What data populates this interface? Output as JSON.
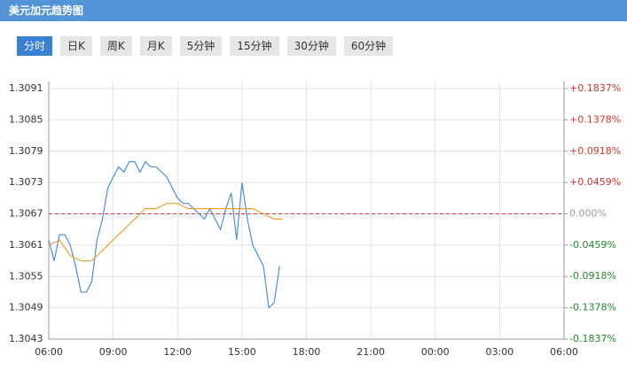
{
  "header": {
    "title": "美元加元趋势图"
  },
  "tabs": [
    "分时",
    "日K",
    "周K",
    "月K",
    "5分钟",
    "15分钟",
    "30分钟",
    "60分钟"
  ],
  "active_tab": 0,
  "chart_data": {
    "type": "line",
    "xlim": [
      0,
      24
    ],
    "xticks": [
      {
        "value": 0,
        "label": "06:00"
      },
      {
        "value": 3,
        "label": "09:00"
      },
      {
        "value": 6,
        "label": "12:00"
      },
      {
        "value": 9,
        "label": "15:00"
      },
      {
        "value": 12,
        "label": "18:00"
      },
      {
        "value": 15,
        "label": "21:00"
      },
      {
        "value": 18,
        "label": "00:00"
      },
      {
        "value": 21,
        "label": "03:00"
      },
      {
        "value": 24,
        "label": "06:00"
      }
    ],
    "ylim": [
      1.3043,
      1.3091
    ],
    "yticks": [
      1.3091,
      1.3085,
      1.3079,
      1.3073,
      1.3067,
      1.3061,
      1.3055,
      1.3049,
      1.3043
    ],
    "y2lim": [
      -0.1837,
      0.1837
    ],
    "y2ticks": [
      {
        "value": 0.1837,
        "label": "+0.1837%"
      },
      {
        "value": 0.1378,
        "label": "+0.1378%"
      },
      {
        "value": 0.0918,
        "label": "+0.0918%"
      },
      {
        "value": 0.0459,
        "label": "+0.0459%"
      },
      {
        "value": 0,
        "label": "0.000%"
      },
      {
        "value": -0.0459,
        "label": "-0.0459%"
      },
      {
        "value": -0.0918,
        "label": "-0.0918%"
      },
      {
        "value": -0.1378,
        "label": "-0.1378%"
      },
      {
        "value": -0.1837,
        "label": "-0.1837%"
      }
    ],
    "reference_line": {
      "value": 1.3067,
      "color": "#d9342b"
    },
    "grid": true,
    "series": [
      {
        "color": "#4a90d9",
        "x": [
          0,
          0.25,
          0.5,
          0.75,
          1,
          1.25,
          1.5,
          1.75,
          2,
          2.25,
          2.5,
          2.75,
          3,
          3.25,
          3.5,
          3.75,
          4,
          4.25,
          4.5,
          4.75,
          5,
          5.25,
          5.5,
          5.75,
          6,
          6.25,
          6.5,
          6.75,
          7,
          7.25,
          7.5,
          7.75,
          8,
          8.25,
          8.5,
          8.75,
          9,
          9.25,
          9.5,
          9.75,
          10,
          10.25,
          10.5,
          10.75
        ],
        "values": [
          1.3062,
          1.3058,
          1.3063,
          1.3063,
          1.3061,
          1.3057,
          1.3052,
          1.3052,
          1.3054,
          1.3062,
          1.3066,
          1.3072,
          1.3074,
          1.3076,
          1.3075,
          1.3077,
          1.3077,
          1.3075,
          1.3077,
          1.3076,
          1.3076,
          1.3075,
          1.3074,
          1.3072,
          1.307,
          1.3069,
          1.3069,
          1.3068,
          1.3067,
          1.3066,
          1.3068,
          1.3066,
          1.3064,
          1.3068,
          1.3071,
          1.3062,
          1.3073,
          1.3066,
          1.3061,
          1.3059,
          1.3057,
          1.3049,
          1.305,
          1.3057
        ]
      },
      {
        "color": "#f0a030",
        "x": [
          0,
          0.5,
          1,
          1.5,
          2,
          2.5,
          3,
          3.5,
          4,
          4.5,
          5,
          5.5,
          6,
          6.5,
          7,
          7.5,
          8,
          8.5,
          9,
          9.5,
          10,
          10.5,
          10.9
        ],
        "values": [
          1.3061,
          1.3062,
          1.3059,
          1.3058,
          1.3058,
          1.306,
          1.3062,
          1.3064,
          1.3066,
          1.3068,
          1.3068,
          1.3069,
          1.3069,
          1.3068,
          1.3068,
          1.3068,
          1.3068,
          1.3068,
          1.3068,
          1.3068,
          1.3067,
          1.3066,
          1.3066
        ]
      }
    ]
  }
}
